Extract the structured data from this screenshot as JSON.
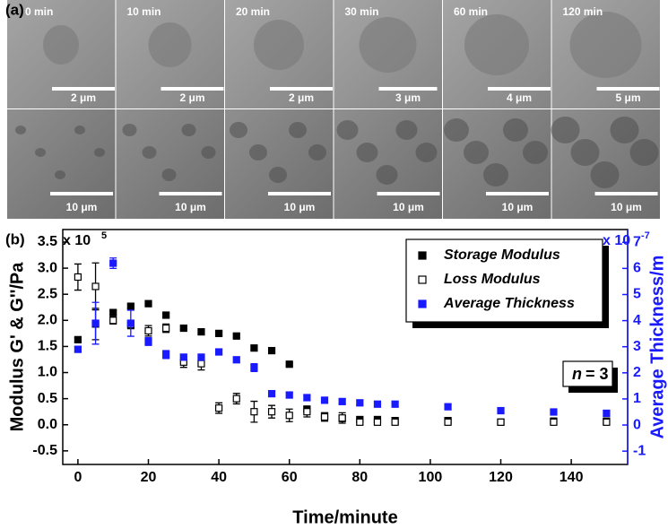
{
  "panel_a": {
    "label": "(a)",
    "top_row": [
      {
        "time": "0 min",
        "scale": "2 μm"
      },
      {
        "time": "10 min",
        "scale": "2 μm"
      },
      {
        "time": "20 min",
        "scale": "2 μm"
      },
      {
        "time": "30 min",
        "scale": "3 μm"
      },
      {
        "time": "60 min",
        "scale": "4 μm"
      },
      {
        "time": "120 min",
        "scale": "5 μm"
      }
    ],
    "bottom_row": [
      {
        "scale": "10 μm"
      },
      {
        "scale": "10 μm"
      },
      {
        "scale": "10 μm"
      },
      {
        "scale": "10 μm"
      },
      {
        "scale": "10 μm"
      },
      {
        "scale": "10 μm"
      }
    ]
  },
  "chart_data": {
    "type": "errorbar-scatter",
    "panel_label": "(b)",
    "x_label": "Time/minute",
    "y_label": "Modulus G' & G''/Pa",
    "y2_label": "Average Thickness/m",
    "y_multiplier": {
      "base": "x 10",
      "exp": "5"
    },
    "y2_multiplier": {
      "base": "x 10",
      "exp": "-7"
    },
    "annotation": {
      "italic": "n",
      "text": " = 3"
    },
    "x": [
      0,
      5,
      10,
      15,
      20,
      25,
      30,
      35,
      40,
      45,
      50,
      55,
      60,
      65,
      70,
      75,
      80,
      85,
      90,
      105,
      120,
      135,
      150
    ],
    "series": [
      {
        "name": "Storage Modulus",
        "color": "#000000",
        "marker": "filled",
        "axis": "y",
        "values": [
          1.63,
          1.93,
          2.15,
          2.27,
          2.32,
          2.1,
          1.85,
          1.78,
          1.75,
          1.7,
          1.47,
          1.42,
          1.16,
          0.3,
          0.17,
          0.12,
          0.1,
          0.1,
          0.08,
          0.08,
          0.05,
          0.07,
          0.07
        ],
        "errors": [
          0.04,
          0.3,
          0.04,
          0.04,
          0.04,
          0.03,
          0.03,
          0.03,
          0.03,
          0.03,
          0.03,
          0.03,
          0.03,
          0.05,
          0.05,
          0.05,
          0.05,
          0.05,
          0.05,
          0.05,
          0.05,
          0.05,
          0.05
        ]
      },
      {
        "name": "Loss Modulus",
        "color": "#000000",
        "marker": "open",
        "axis": "y",
        "values": [
          2.83,
          2.65,
          2.0,
          1.92,
          1.8,
          1.85,
          1.2,
          1.17,
          0.32,
          0.5,
          0.25,
          0.25,
          0.18,
          0.25,
          0.15,
          0.13,
          0.05,
          0.05,
          0.05,
          0.05,
          0.05,
          0.05,
          0.05
        ],
        "errors": [
          0.25,
          0.45,
          0.07,
          0.08,
          0.1,
          0.08,
          0.1,
          0.12,
          0.1,
          0.1,
          0.2,
          0.12,
          0.12,
          0.1,
          0.08,
          0.1,
          0.05,
          0.05,
          0.05,
          0.05,
          0.05,
          0.05,
          0.05
        ]
      },
      {
        "name": "Average Thickness",
        "color": "#1a1aff",
        "marker": "filled",
        "axis": "y2",
        "values": [
          2.9,
          3.9,
          6.2,
          3.9,
          3.2,
          2.7,
          2.6,
          2.6,
          2.8,
          2.5,
          2.2,
          1.2,
          1.15,
          1.05,
          0.95,
          0.9,
          0.85,
          0.8,
          0.8,
          0.7,
          0.55,
          0.5,
          0.45
        ],
        "errors": [
          0.1,
          0.8,
          0.2,
          0.5,
          0.15,
          0.15,
          0.1,
          0.1,
          0.1,
          0.1,
          0.15,
          0.1,
          0.1,
          0.1,
          0.1,
          0.1,
          0.1,
          0.1,
          0.1,
          0.1,
          0.1,
          0.1,
          0.1
        ]
      }
    ],
    "xlim": [
      -4.3,
      156
    ],
    "xticks": [
      0,
      20,
      40,
      60,
      80,
      100,
      120,
      140
    ],
    "ylim": [
      -0.76,
      3.74
    ],
    "yticks": [
      {
        "value": -0.5,
        "label": "-0.5"
      },
      {
        "value": 0,
        "label": "0.0"
      },
      {
        "value": 0.5,
        "label": "0.5"
      },
      {
        "value": 1,
        "label": "1.0"
      },
      {
        "value": 1.5,
        "label": "1.5"
      },
      {
        "value": 2,
        "label": "2.0"
      },
      {
        "value": 2.5,
        "label": "2.5"
      },
      {
        "value": 3,
        "label": "3.0"
      },
      {
        "value": 3.5,
        "label": "3.5"
      }
    ],
    "y2lim": [
      -1.51,
      7.49
    ],
    "y2ticks": [
      -1,
      0,
      1,
      2,
      3,
      4,
      5,
      6,
      7
    ],
    "legend": "upper-right"
  }
}
